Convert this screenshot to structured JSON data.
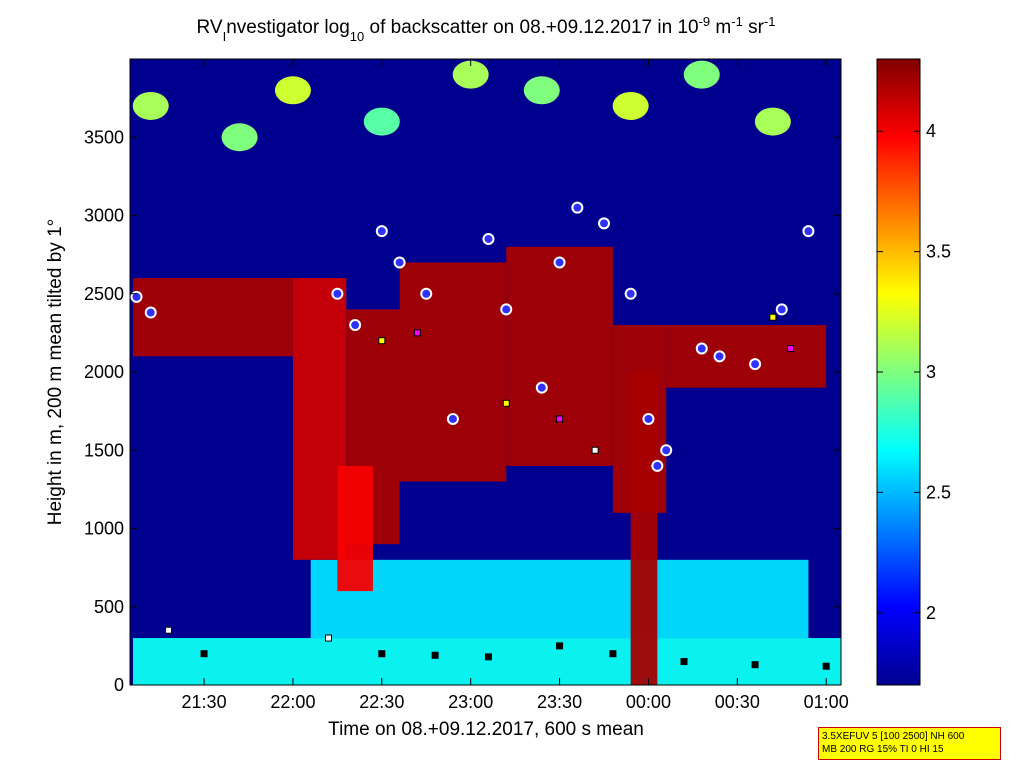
{
  "chart_data": {
    "type": "heatmap",
    "title": {
      "prefix": "RV",
      "prefix_sub": "I",
      "mid": "nvestigator log",
      "mid_sub": "10",
      "rest": " of backscatter on 08.+09.12.2017 in 10",
      "unit_exp1": "-9",
      "unit_mid": " m",
      "unit_exp2": "-1",
      "unit_end": " sr",
      "unit_exp3": "-1"
    },
    "xlabel": "Time on 08.+09.12.2017, 600 s mean",
    "ylabel": "Height in m, 200 m mean tilted by 1°",
    "xlim": [
      "21:05",
      "01:05"
    ],
    "ylim": [
      0,
      4000
    ],
    "x_ticks": [
      "21:30",
      "22:00",
      "22:30",
      "23:00",
      "23:30",
      "00:00",
      "00:30",
      "01:00"
    ],
    "x_tick_hours": [
      21.5,
      22.0,
      22.5,
      23.0,
      23.5,
      24.0,
      24.5,
      25.0
    ],
    "y_ticks": [
      0,
      500,
      1000,
      1500,
      2000,
      2500,
      3000,
      3500
    ],
    "colorbar": {
      "range": [
        1.7,
        4.3
      ],
      "ticks": [
        "2",
        "2.5",
        "3",
        "3.5",
        "4"
      ],
      "tick_values": [
        2,
        2.5,
        3,
        3.5,
        4
      ],
      "colormap": "jet"
    },
    "layers": {
      "cloud_bands": [
        {
          "start": 21.1,
          "end": 22.0,
          "base": 2100,
          "top": 2600,
          "v": 4.2
        },
        {
          "start": 22.0,
          "end": 22.3,
          "base": 800,
          "top": 2600,
          "v": 4.1
        },
        {
          "start": 22.3,
          "end": 22.6,
          "base": 900,
          "top": 2400,
          "v": 4.2
        },
        {
          "start": 22.6,
          "end": 23.2,
          "base": 1300,
          "top": 2700,
          "v": 4.2
        },
        {
          "start": 23.2,
          "end": 23.8,
          "base": 1400,
          "top": 2800,
          "v": 4.2
        },
        {
          "start": 23.8,
          "end": 24.1,
          "base": 1100,
          "top": 2300,
          "v": 4.2
        },
        {
          "start": 24.1,
          "end": 25.0,
          "base": 1900,
          "top": 2300,
          "v": 4.2
        }
      ],
      "fall_streaks": [
        {
          "start": 23.9,
          "end": 24.05,
          "base": 0,
          "top": 2000,
          "v": 4.2
        },
        {
          "start": 22.25,
          "end": 22.45,
          "base": 600,
          "top": 1400,
          "v": 4.0
        }
      ],
      "boundary_layer": [
        {
          "start": 21.1,
          "end": 25.1,
          "base": 0,
          "top": 300,
          "v": 2.7
        },
        {
          "start": 22.1,
          "end": 24.9,
          "base": 300,
          "top": 800,
          "v": 2.6
        }
      ],
      "upper_patches": [
        {
          "t": 21.2,
          "h": 3700,
          "v": 3.1
        },
        {
          "t": 21.7,
          "h": 3500,
          "v": 3.0
        },
        {
          "t": 22.0,
          "h": 3800,
          "v": 3.2
        },
        {
          "t": 22.5,
          "h": 3600,
          "v": 2.9
        },
        {
          "t": 23.0,
          "h": 3900,
          "v": 3.1
        },
        {
          "t": 23.4,
          "h": 3800,
          "v": 3.0
        },
        {
          "t": 23.9,
          "h": 3700,
          "v": 3.2
        },
        {
          "t": 24.3,
          "h": 3900,
          "v": 3.0
        },
        {
          "t": 24.7,
          "h": 3600,
          "v": 3.1
        }
      ],
      "cloud_top_circles": [
        {
          "t": 21.12,
          "h": 2480
        },
        {
          "t": 21.2,
          "h": 2380
        },
        {
          "t": 22.25,
          "h": 2500
        },
        {
          "t": 22.35,
          "h": 2300
        },
        {
          "t": 22.5,
          "h": 2900
        },
        {
          "t": 22.6,
          "h": 2700
        },
        {
          "t": 22.75,
          "h": 2500
        },
        {
          "t": 22.9,
          "h": 1700
        },
        {
          "t": 23.1,
          "h": 2850
        },
        {
          "t": 23.2,
          "h": 2400
        },
        {
          "t": 23.4,
          "h": 1900
        },
        {
          "t": 23.5,
          "h": 2700
        },
        {
          "t": 23.6,
          "h": 3050
        },
        {
          "t": 23.75,
          "h": 2950
        },
        {
          "t": 23.9,
          "h": 2500
        },
        {
          "t": 24.0,
          "h": 1700
        },
        {
          "t": 24.05,
          "h": 1400
        },
        {
          "t": 24.1,
          "h": 1500
        },
        {
          "t": 24.3,
          "h": 2150
        },
        {
          "t": 24.4,
          "h": 2100
        },
        {
          "t": 24.6,
          "h": 2050
        },
        {
          "t": 24.75,
          "h": 2400
        },
        {
          "t": 24.9,
          "h": 2900
        }
      ],
      "cloud_base_squares": [
        {
          "t": 21.3,
          "h": 350,
          "c": "#ffffff"
        },
        {
          "t": 21.5,
          "h": 200,
          "c": "#000000"
        },
        {
          "t": 22.2,
          "h": 300,
          "c": "#ffffff"
        },
        {
          "t": 22.5,
          "h": 200,
          "c": "#000000"
        },
        {
          "t": 22.8,
          "h": 190,
          "c": "#000000"
        },
        {
          "t": 23.1,
          "h": 180,
          "c": "#000000"
        },
        {
          "t": 23.5,
          "h": 250,
          "c": "#000000"
        },
        {
          "t": 23.8,
          "h": 200,
          "c": "#000000"
        },
        {
          "t": 24.2,
          "h": 150,
          "c": "#000000"
        },
        {
          "t": 24.6,
          "h": 130,
          "c": "#000000"
        },
        {
          "t": 25.0,
          "h": 120,
          "c": "#000000"
        },
        {
          "t": 22.5,
          "h": 2200,
          "c": "#ffff00"
        },
        {
          "t": 22.7,
          "h": 2250,
          "c": "#ff00ff"
        },
        {
          "t": 23.2,
          "h": 1800,
          "c": "#ffff00"
        },
        {
          "t": 23.5,
          "h": 1700,
          "c": "#ff00ff"
        },
        {
          "t": 23.7,
          "h": 1500,
          "c": "#ffffff"
        },
        {
          "t": 24.7,
          "h": 2350,
          "c": "#ffff00"
        },
        {
          "t": 24.8,
          "h": 2150,
          "c": "#ff00ff"
        }
      ]
    }
  },
  "info_box": {
    "line1": "3.5XEFUV 5 [100 2500] NH 600",
    "line2": "MB 200 RG 15% TI 0 HI 15"
  }
}
